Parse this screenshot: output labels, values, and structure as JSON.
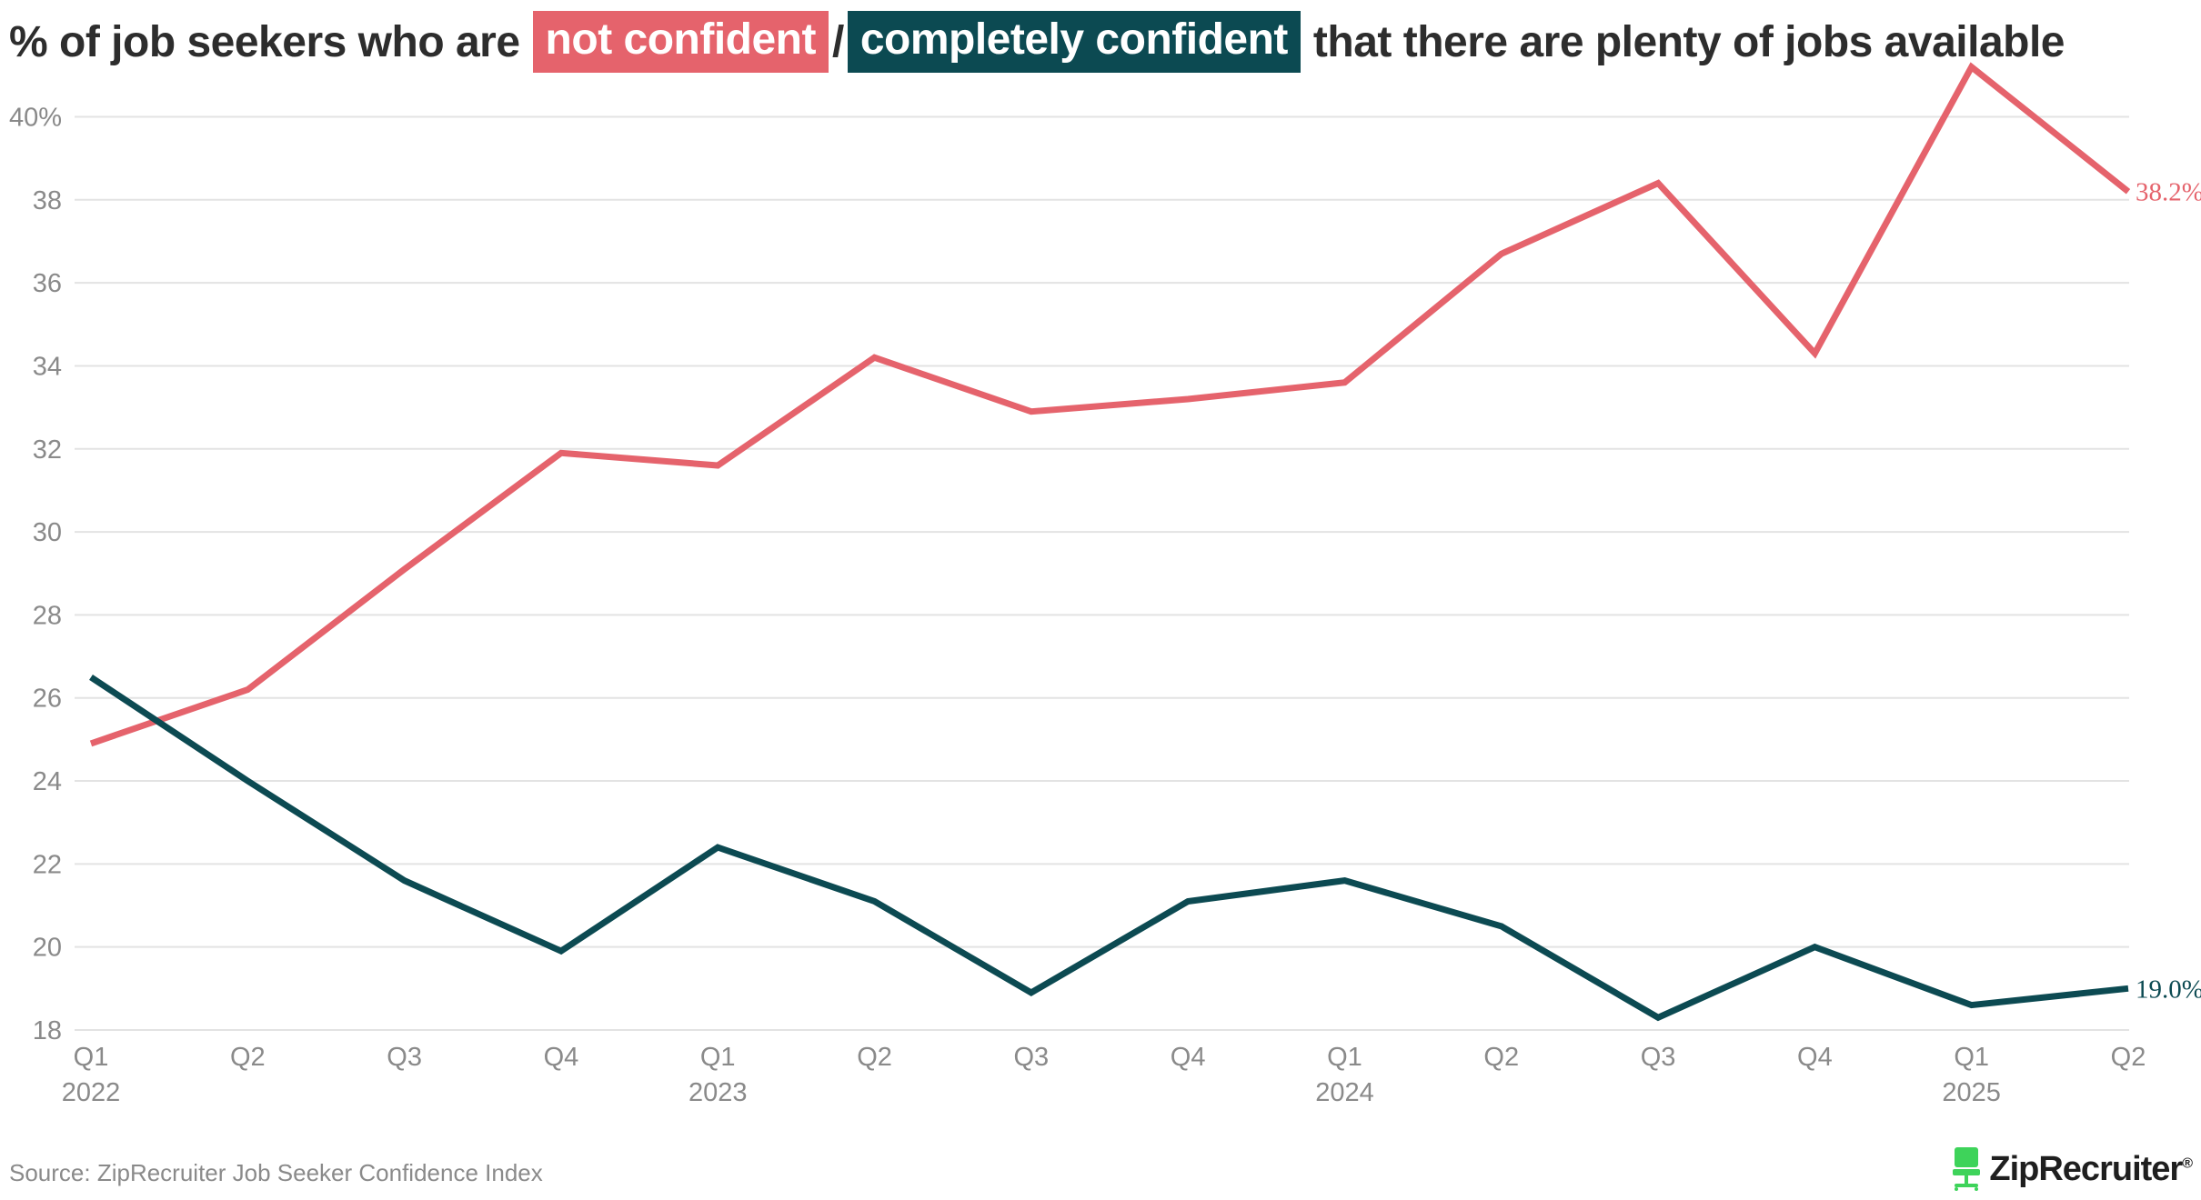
{
  "title": {
    "prefix": "% of job seekers who are",
    "highlight_1": "not confident",
    "separator": "/",
    "highlight_2": "completely confident",
    "suffix": "that there are plenty of jobs available"
  },
  "source": "Source: ZipRecruiter Job Seeker Confidence Index",
  "logo": {
    "text": "ZipRecruiter",
    "mark": "®",
    "icon": "chair-icon"
  },
  "colors": {
    "not_confident": "#e5636c",
    "completely_confident": "#0c4a52",
    "grid": "#e3e3e3",
    "tick_text": "#8a8a8a",
    "logo_green": "#3ed35a"
  },
  "chart_data": {
    "type": "line",
    "x_labels": [
      "Q1",
      "Q2",
      "Q3",
      "Q4",
      "Q1",
      "Q2",
      "Q3",
      "Q4",
      "Q1",
      "Q2",
      "Q3",
      "Q4",
      "Q1",
      "Q2"
    ],
    "x_years": [
      "2022",
      "",
      "",
      "",
      "2023",
      "",
      "",
      "",
      "2024",
      "",
      "",
      "",
      "2025",
      ""
    ],
    "y_ticks": [
      18,
      20,
      22,
      24,
      26,
      28,
      30,
      32,
      34,
      36,
      38,
      40
    ],
    "y_tick_labels": [
      "18",
      "20",
      "22",
      "24",
      "26",
      "28",
      "30",
      "32",
      "34",
      "36",
      "38",
      "40%"
    ],
    "ylim": [
      18,
      41.5
    ],
    "grid": "horizontal",
    "series": [
      {
        "name": "not confident",
        "color": "#e5636c",
        "values": [
          24.9,
          26.2,
          29.1,
          31.9,
          31.6,
          34.2,
          32.9,
          33.2,
          33.6,
          36.7,
          38.4,
          34.3,
          41.2,
          38.2
        ],
        "end_label": "38.2%"
      },
      {
        "name": "completely confident",
        "color": "#0c4a52",
        "values": [
          26.5,
          24.0,
          21.6,
          19.9,
          22.4,
          21.1,
          18.9,
          21.1,
          21.6,
          20.5,
          18.3,
          20.0,
          18.6,
          19.0
        ],
        "end_label": "19.0%"
      }
    ]
  }
}
